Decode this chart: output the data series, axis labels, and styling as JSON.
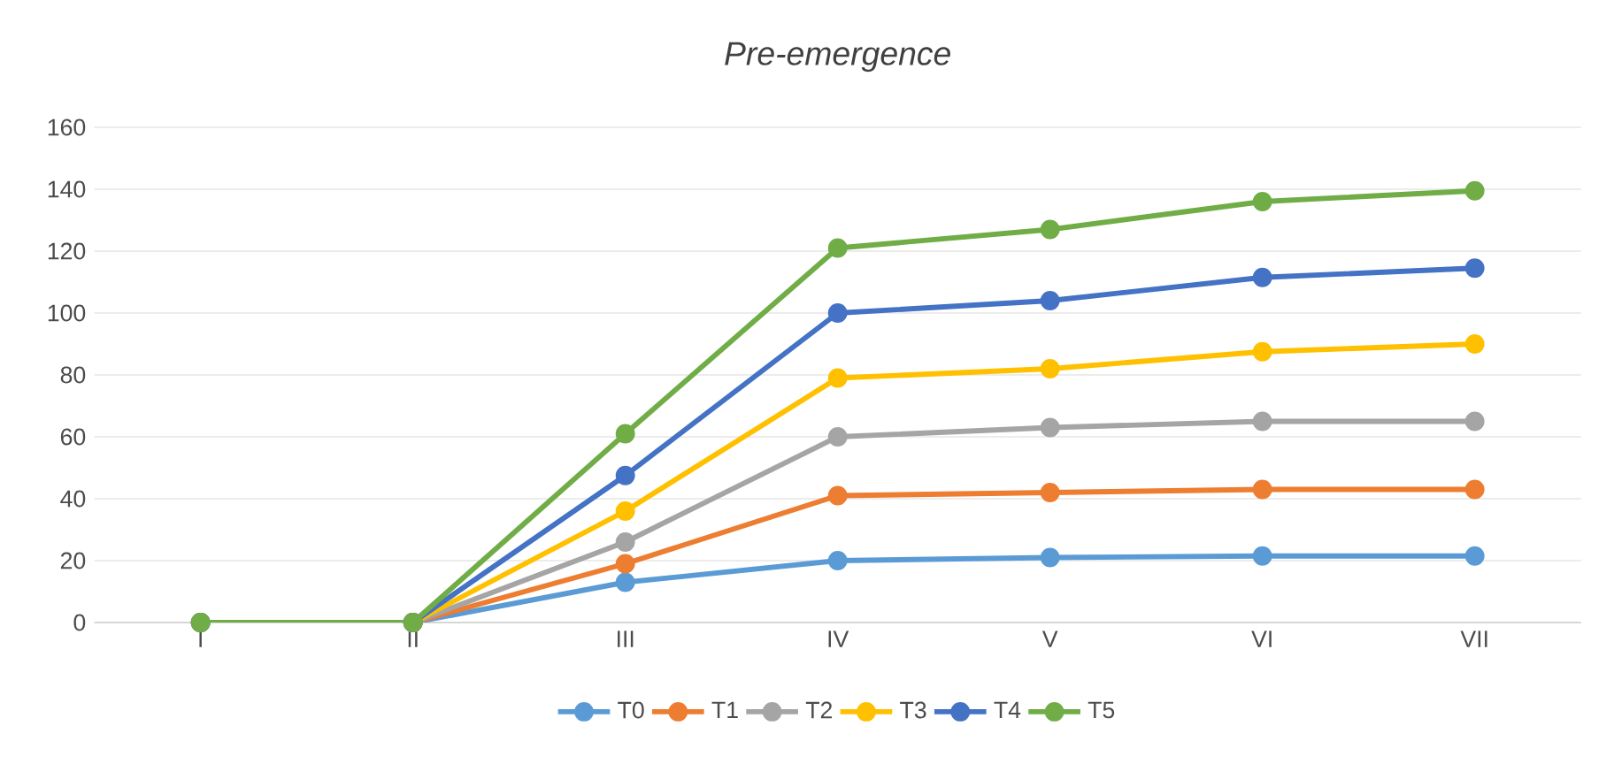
{
  "chart_data": {
    "type": "line",
    "title": "*Pre-emergence*",
    "categories": [
      "I",
      "II",
      "III",
      "IV",
      "V",
      "VI",
      "VII"
    ],
    "series": [
      {
        "name": "T0",
        "color": "#5b9bd5",
        "values": [
          0,
          0,
          13,
          20,
          21,
          21.5,
          21.5
        ]
      },
      {
        "name": "T1",
        "color": "#ed7d31",
        "values": [
          0,
          0,
          19,
          41,
          42,
          43,
          43
        ]
      },
      {
        "name": "T2",
        "color": "#a5a5a5",
        "values": [
          0,
          0,
          26,
          60,
          63,
          65,
          65
        ]
      },
      {
        "name": "T3",
        "color": "#ffc000",
        "values": [
          0,
          0,
          36,
          79,
          82,
          87.5,
          90
        ]
      },
      {
        "name": "T4",
        "color": "#4472c4",
        "values": [
          0,
          0,
          47.5,
          100,
          104,
          111.5,
          114.5
        ]
      },
      {
        "name": "T5",
        "color": "#70ad47",
        "values": [
          0,
          0,
          61,
          121,
          127,
          136,
          139.5
        ]
      }
    ],
    "ylim": [
      0,
      160
    ],
    "yticks": [
      0,
      20,
      40,
      60,
      80,
      100,
      120,
      140,
      160
    ],
    "grid": "y",
    "legend": "bottom",
    "marker": "circle",
    "line_style": "solid"
  }
}
